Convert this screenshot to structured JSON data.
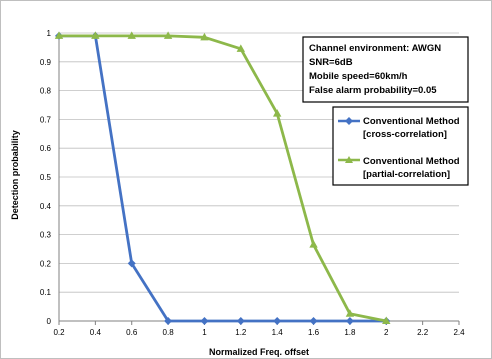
{
  "chart_data": {
    "type": "line",
    "title": "",
    "xlabel": "Normalized Freq. offset",
    "ylabel": "Detection probability",
    "xlim": [
      0.2,
      2.4
    ],
    "ylim": [
      0,
      1
    ],
    "x_ticks": [
      "0.2",
      "0.4",
      "0.6",
      "0.8",
      "1",
      "1.2",
      "1.4",
      "1.6",
      "1.8",
      "2",
      "2.2",
      "2.4"
    ],
    "y_ticks": [
      "0",
      "0.1",
      "0.2",
      "0.3",
      "0.4",
      "0.5",
      "0.6",
      "0.7",
      "0.8",
      "0.9",
      "1"
    ],
    "grid": "horizontal",
    "legend_position": "right",
    "annotation_lines": [
      "Channel environment: AWGN",
      "SNR=6dB",
      "Mobile speed=60km/h",
      "False alarm probability=0.05"
    ],
    "series": [
      {
        "name_lines": [
          "Conventional Method",
          "[cross-correlation]"
        ],
        "color": "#4472c4",
        "marker": "diamond",
        "x": [
          0.2,
          0.4,
          0.6,
          0.8,
          1.0,
          1.2,
          1.4,
          1.6,
          1.8,
          2.0
        ],
        "y": [
          0.99,
          0.99,
          0.2,
          0,
          0,
          0,
          0,
          0,
          0,
          0
        ]
      },
      {
        "name_lines": [
          "Conventional Method",
          "[partial-correlation]"
        ],
        "color": "#8db84a",
        "marker": "triangle",
        "x": [
          0.2,
          0.4,
          0.6,
          0.8,
          1.0,
          1.2,
          1.4,
          1.6,
          1.8,
          2.0
        ],
        "y": [
          0.99,
          0.99,
          0.99,
          0.99,
          0.985,
          0.945,
          0.72,
          0.265,
          0.025,
          0
        ]
      }
    ]
  }
}
